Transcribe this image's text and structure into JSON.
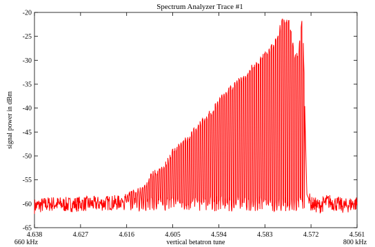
{
  "chart_data": {
    "type": "line",
    "title": "Spectrum Analyzer Trace #1",
    "xlabel": "vertical betatron tune",
    "ylabel": "signal power in dBm",
    "x_axis_reversed": true,
    "xlim": [
      4.638,
      4.561
    ],
    "ylim": [
      -65,
      -20
    ],
    "x_ticks": [
      "4.638",
      "4.627",
      "4.616",
      "4.605",
      "4.594",
      "4.583",
      "4.572",
      "4.561"
    ],
    "y_ticks": [
      "-20",
      "-25",
      "-30",
      "-35",
      "-40",
      "-45",
      "-50",
      "-55",
      "-60",
      "-65"
    ],
    "x_end_labels": {
      "left": "660 kHz",
      "right": "800 kHz"
    },
    "grid": false,
    "legend": "none",
    "colors": {
      "trace": "#ff0000",
      "axes": "#000000"
    },
    "series": [
      {
        "values_description_free": true,
        "x": [
          4.638,
          4.634,
          4.63,
          4.627,
          4.623,
          4.62,
          4.618,
          4.616,
          4.614,
          4.612,
          4.61,
          4.608,
          4.606,
          4.605,
          4.603,
          4.601,
          4.599,
          4.597,
          4.595,
          4.594,
          4.592,
          4.59,
          4.588,
          4.586,
          4.584,
          4.583,
          4.581,
          4.58,
          4.579,
          4.578,
          4.577,
          4.576,
          4.575,
          4.574,
          4.573,
          4.572,
          4.57,
          4.568,
          4.566,
          4.564,
          4.562,
          4.561
        ],
        "values": [
          -60.5,
          -60.0,
          -60.2,
          -60.0,
          -60.0,
          -59.8,
          -59.8,
          -58.5,
          -57.5,
          -57.0,
          -54.0,
          -53.0,
          -51.0,
          -49.0,
          -47.5,
          -46.0,
          -44.0,
          -42.0,
          -40.0,
          -38.5,
          -36.5,
          -35.0,
          -33.5,
          -31.5,
          -30.0,
          -28.5,
          -27.0,
          -25.5,
          -22.0,
          -21.5,
          -22.5,
          -29.0,
          -29.0,
          -20.5,
          -58.0,
          -60.0,
          -60.5,
          -59.5,
          -60.0,
          -60.5,
          -60.0,
          -60.0
        ]
      }
    ]
  }
}
